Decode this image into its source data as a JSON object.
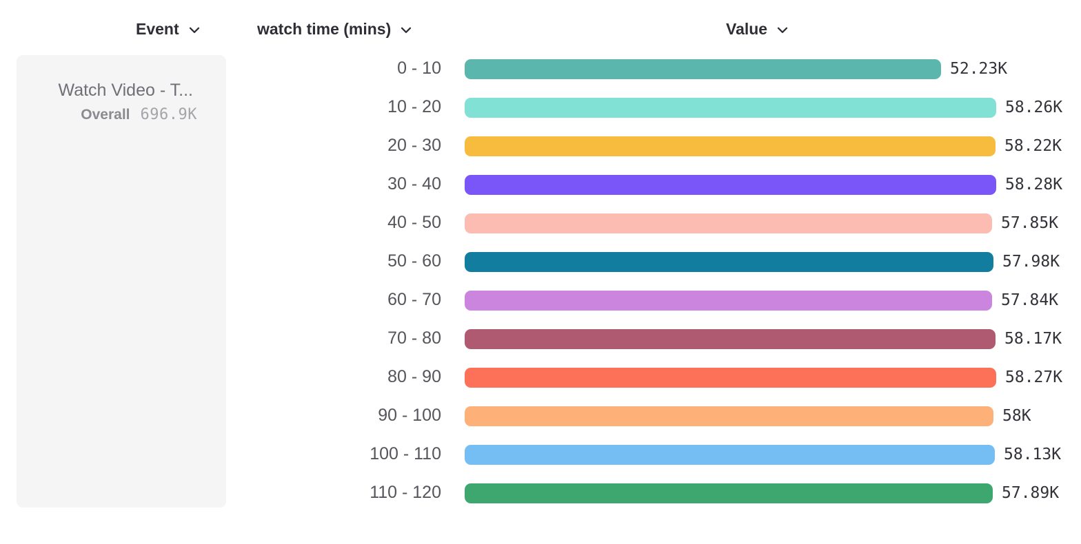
{
  "headers": {
    "event": "Event",
    "watch_time": "watch time (mins)",
    "value": "Value"
  },
  "event_card": {
    "title": "Watch Video - T...",
    "overall_label": "Overall",
    "overall_value": "696.9K"
  },
  "chart_data": {
    "type": "bar",
    "orientation": "horizontal",
    "title": "",
    "xlabel": "Value",
    "ylabel": "watch time (mins)",
    "grid": false,
    "xlim": [
      0,
      58280
    ],
    "categories": [
      "0 - 10",
      "10 - 20",
      "20 - 30",
      "30 - 40",
      "40 - 50",
      "50 - 60",
      "60 - 70",
      "70 - 80",
      "80 - 90",
      "90 - 100",
      "100 - 110",
      "110 - 120"
    ],
    "values": [
      52230,
      58260,
      58220,
      58280,
      57850,
      57980,
      57840,
      58170,
      58270,
      58000,
      58130,
      57890
    ],
    "value_labels": [
      "52.23K",
      "58.26K",
      "58.22K",
      "58.28K",
      "57.85K",
      "57.98K",
      "57.84K",
      "58.17K",
      "58.27K",
      "58K",
      "58.13K",
      "57.89K"
    ],
    "bar_colors": [
      "#5BB6AE",
      "#81E1D4",
      "#F7BC3E",
      "#7A55F7",
      "#FDBCB2",
      "#137DA0",
      "#CB85DF",
      "#B05A71",
      "#FC7158",
      "#FDB078",
      "#74BEF4",
      "#3DA76F"
    ]
  }
}
